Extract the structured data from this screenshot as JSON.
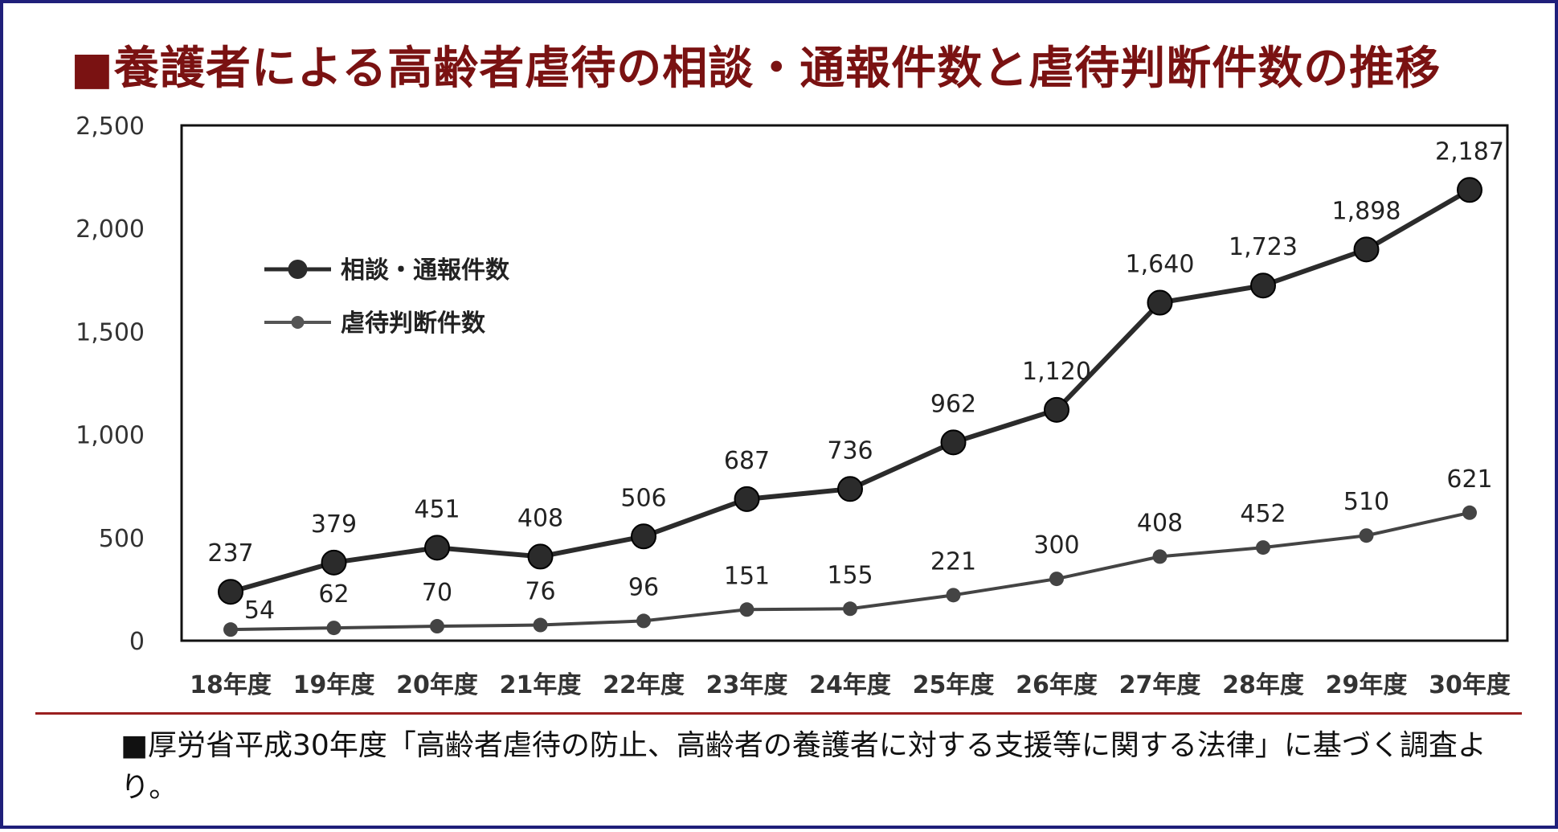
{
  "title": "■養護者による高齢者虐待の相談・通報件数と虐待判断件数の推移",
  "colors": {
    "title": "#7a1212",
    "border": "#1f1f7a",
    "rule": "#9a1f1f",
    "series": "#2b2b2b"
  },
  "note": "■厚労省平成30年度「高齢者虐待の防止、高齢者の養護者に対する支援等に関する法律」に基づく調査より。",
  "chart_data": {
    "type": "line",
    "x": [
      "18年度",
      "19年度",
      "20年度",
      "21年度",
      "22年度",
      "23年度",
      "24年度",
      "25年度",
      "26年度",
      "27年度",
      "28年度",
      "29年度",
      "30年度"
    ],
    "ylim": [
      0,
      2500
    ],
    "yticks": [
      "0",
      "500",
      "1,000",
      "1,500",
      "2,000",
      "2,500"
    ],
    "grid": false,
    "legend_position": "top-left",
    "series": [
      {
        "name": "相談・通報件数",
        "values": [
          237,
          379,
          451,
          408,
          506,
          687,
          736,
          962,
          1120,
          1640,
          1723,
          1898,
          2187
        ],
        "labels": [
          "237",
          "379",
          "451",
          "408",
          "506",
          "687",
          "736",
          "962",
          "1,120",
          "1,640",
          "1,723",
          "1,898",
          "2,187"
        ]
      },
      {
        "name": "虐待判断件数",
        "values": [
          54,
          62,
          70,
          76,
          96,
          151,
          155,
          221,
          300,
          408,
          452,
          510,
          621
        ],
        "labels": [
          "54",
          "62",
          "70",
          "76",
          "96",
          "151",
          "155",
          "221",
          "300",
          "408",
          "452",
          "510",
          "621"
        ]
      }
    ]
  }
}
